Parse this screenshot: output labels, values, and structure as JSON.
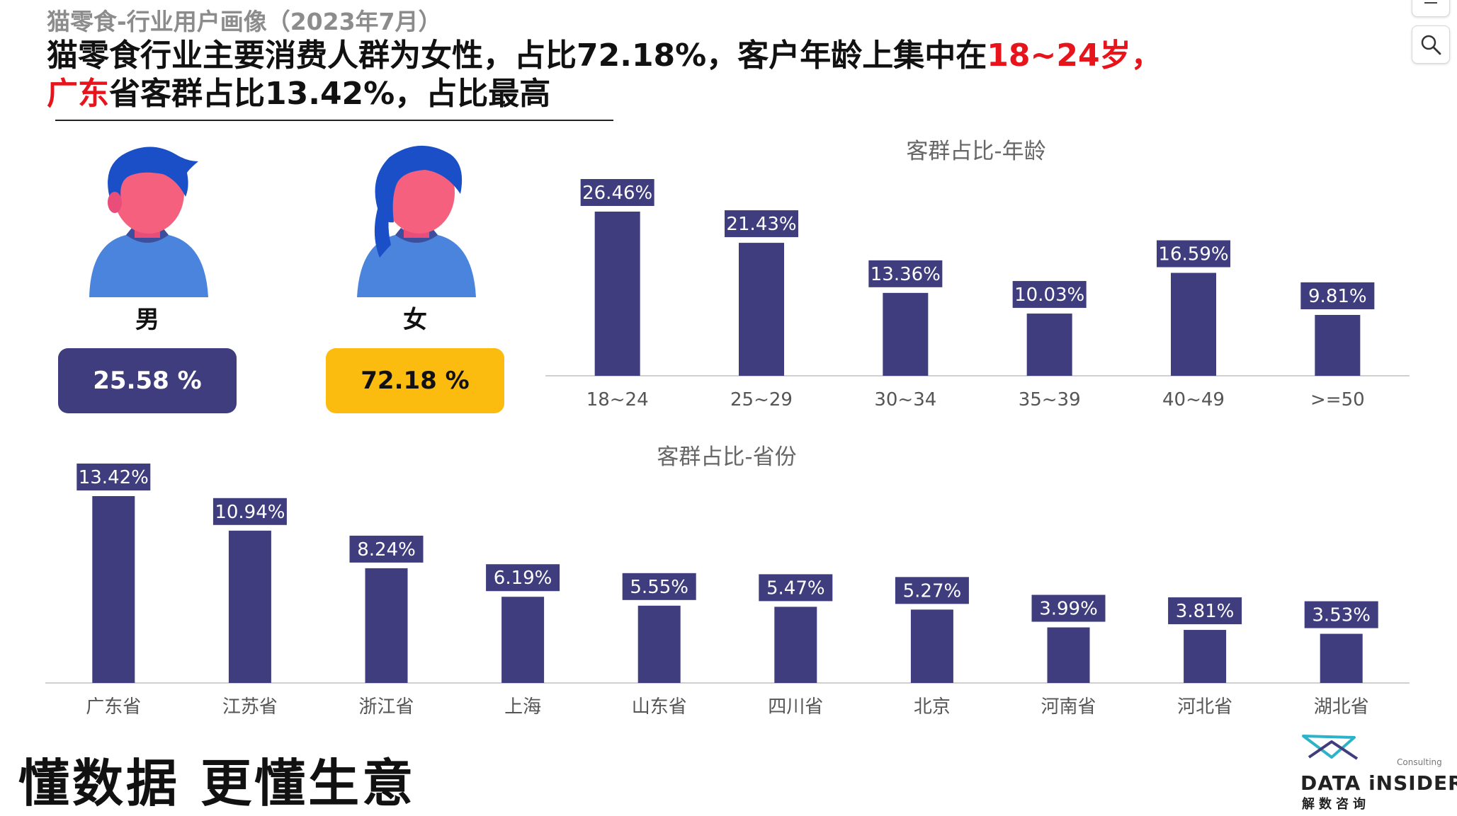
{
  "header": {
    "subtitle": "猫零食-行业用户画像（2023年7月）",
    "headline_part1": "猫零食行业主要消费人群为女性，占比72.18%，客户年龄上集中在",
    "headline_highlight1": "18~24岁，",
    "headline_highlight2": "广东",
    "headline_part2": "省客群占比13.42%，占比最高"
  },
  "gender": {
    "male_label": "男",
    "male_value": "25.58 %",
    "female_label": "女",
    "female_value": "72.18 %"
  },
  "colors": {
    "bar": "#3f3d7d",
    "highlight": "#e8141c",
    "female_pill": "#fbbb0f",
    "male_pill": "#3f3d7d"
  },
  "chart_data": [
    {
      "type": "bar",
      "title": "客群占比-年龄",
      "categories": [
        "18~24",
        "25~29",
        "30~34",
        "35~39",
        "40~49",
        ">=50"
      ],
      "values": [
        26.46,
        21.43,
        13.36,
        10.03,
        16.59,
        9.81
      ],
      "labels": [
        "26.46%",
        "21.43%",
        "13.36%",
        "10.03%",
        "16.59%",
        "9.81%"
      ],
      "unit": "%",
      "grid": false,
      "legend": "none"
    },
    {
      "type": "bar",
      "title": "客群占比-省份",
      "categories": [
        "广东省",
        "江苏省",
        "浙江省",
        "上海",
        "山东省",
        "四川省",
        "北京",
        "河南省",
        "河北省",
        "湖北省"
      ],
      "values": [
        13.42,
        10.94,
        8.24,
        6.19,
        5.55,
        5.47,
        5.27,
        3.99,
        3.81,
        3.53
      ],
      "labels": [
        "13.42%",
        "10.94%",
        "8.24%",
        "6.19%",
        "5.55%",
        "5.47%",
        "5.27%",
        "3.99%",
        "3.81%",
        "3.53%"
      ],
      "unit": "%",
      "grid": false,
      "legend": "none"
    }
  ],
  "footer": {
    "slogan": "懂数据 更懂生意",
    "logo_name": "DATA iNSIDER",
    "logo_cn": "解数咨询",
    "logo_consulting": "Consulting"
  },
  "toolbar": {
    "top_icon": "share-icon",
    "search_icon": "search-icon"
  }
}
